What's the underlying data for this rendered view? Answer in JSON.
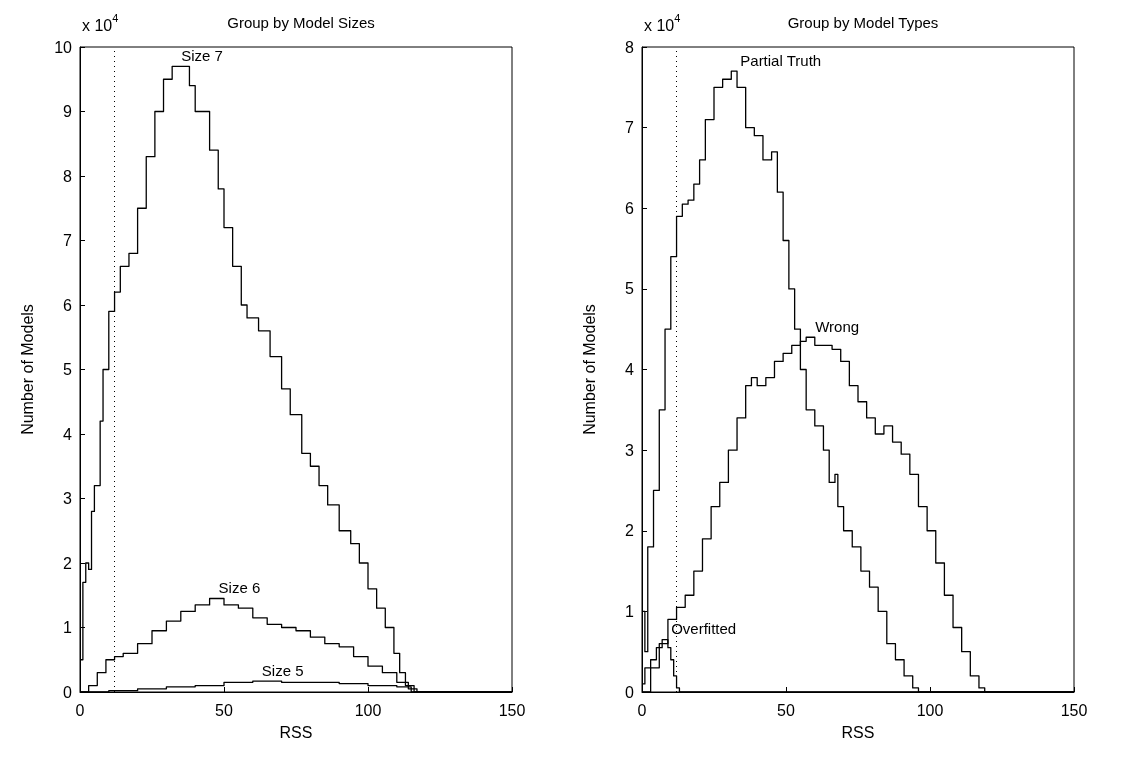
{
  "chart_data": [
    {
      "type": "step",
      "title": "Group by Model Sizes",
      "xlabel": "RSS",
      "ylabel": "Number of Models",
      "annotations": [
        "x 10$^{4}$"
      ],
      "xlim": [
        0,
        150
      ],
      "xticks": [
        0,
        50,
        100,
        150
      ],
      "ylim": [
        0,
        10
      ],
      "yticks": [
        0,
        1,
        2,
        3,
        4,
        5,
        6,
        7,
        8,
        9,
        10
      ],
      "grid": false,
      "legend": false,
      "marker": "none",
      "line_style": "solid",
      "ref_lines": [
        {
          "axis": "x",
          "value": 12,
          "line_style": "dotted",
          "color": "#000000"
        }
      ],
      "series": [
        {
          "name": "Size 7",
          "color": "#000000",
          "x": [
            0,
            1,
            2,
            3,
            4,
            5,
            7,
            8,
            10,
            12,
            14,
            17,
            20,
            23,
            26,
            29,
            32,
            35,
            38,
            40,
            42,
            45,
            48,
            50,
            53,
            56,
            58,
            62,
            66,
            70,
            73,
            77,
            80,
            83,
            86,
            90,
            94,
            97,
            100,
            103,
            106,
            109,
            111,
            113,
            116,
            150
          ],
          "values": [
            0.5,
            1.7,
            2.0,
            1.9,
            2.8,
            3.2,
            4.2,
            5.0,
            5.9,
            6.2,
            6.6,
            6.8,
            7.5,
            8.3,
            9.0,
            9.5,
            9.7,
            9.7,
            9.4,
            9.0,
            9.0,
            8.4,
            7.8,
            7.2,
            6.6,
            6.0,
            5.8,
            5.6,
            5.2,
            4.7,
            4.3,
            3.7,
            3.5,
            3.2,
            2.9,
            2.5,
            2.3,
            2.0,
            1.6,
            1.3,
            1.0,
            0.6,
            0.3,
            0.1,
            0,
            0
          ]
        },
        {
          "name": "Size 6",
          "color": "#000000",
          "x": [
            0,
            3,
            6,
            9,
            12,
            15,
            20,
            25,
            30,
            35,
            40,
            45,
            50,
            55,
            60,
            65,
            70,
            75,
            80,
            85,
            90,
            95,
            100,
            105,
            110,
            114,
            117,
            150
          ],
          "values": [
            0,
            0.1,
            0.3,
            0.5,
            0.55,
            0.6,
            0.75,
            0.95,
            1.1,
            1.25,
            1.35,
            1.45,
            1.35,
            1.3,
            1.15,
            1.05,
            1.0,
            0.95,
            0.85,
            0.75,
            0.7,
            0.55,
            0.4,
            0.3,
            0.15,
            0.05,
            0,
            0
          ]
        },
        {
          "name": "Size 5",
          "color": "#000000",
          "x": [
            0,
            10,
            20,
            30,
            40,
            50,
            60,
            70,
            80,
            90,
            100,
            110,
            115,
            150
          ],
          "values": [
            0,
            0.02,
            0.05,
            0.08,
            0.1,
            0.15,
            0.17,
            0.15,
            0.15,
            0.13,
            0.1,
            0.08,
            0,
            0
          ]
        }
      ]
    },
    {
      "type": "step",
      "title": "Group by Model Types",
      "xlabel": "RSS",
      "ylabel": "Number of Models",
      "annotations": [
        "x 10$^{4}$"
      ],
      "xlim": [
        0,
        150
      ],
      "xticks": [
        0,
        50,
        100,
        150
      ],
      "ylim": [
        0,
        8
      ],
      "yticks": [
        0,
        1,
        2,
        3,
        4,
        5,
        6,
        7,
        8
      ],
      "grid": false,
      "legend": false,
      "marker": "none",
      "line_style": "solid",
      "ref_lines": [
        {
          "axis": "x",
          "value": 12,
          "line_style": "dotted",
          "color": "#000000"
        }
      ],
      "series": [
        {
          "name": "Partial Truth",
          "color": "#000000",
          "x": [
            0,
            1,
            2,
            4,
            6,
            8,
            10,
            12,
            14,
            16,
            18,
            20,
            22,
            25,
            28,
            31,
            33,
            36,
            39,
            42,
            45,
            47,
            49,
            51,
            53,
            55,
            57,
            60,
            63,
            65,
            67,
            68,
            70,
            73,
            76,
            79,
            82,
            85,
            88,
            91,
            94,
            96,
            150
          ],
          "values": [
            1.0,
            0.5,
            1.8,
            2.5,
            3.5,
            4.5,
            5.4,
            5.9,
            6.05,
            6.1,
            6.3,
            6.6,
            7.1,
            7.5,
            7.6,
            7.7,
            7.5,
            7.0,
            6.9,
            6.6,
            6.7,
            6.2,
            5.6,
            5.0,
            4.5,
            4.0,
            3.5,
            3.3,
            3.0,
            2.6,
            2.7,
            2.3,
            2.0,
            1.8,
            1.5,
            1.3,
            1.0,
            0.6,
            0.4,
            0.2,
            0.05,
            0,
            0
          ]
        },
        {
          "name": "Wrong",
          "color": "#000000",
          "x": [
            0,
            3,
            6,
            9,
            12,
            15,
            18,
            21,
            24,
            27,
            30,
            33,
            36,
            38,
            40,
            43,
            46,
            49,
            52,
            55,
            57,
            60,
            63,
            66,
            69,
            72,
            75,
            78,
            81,
            84,
            87,
            90,
            93,
            96,
            99,
            102,
            105,
            108,
            111,
            114,
            117,
            119,
            150
          ],
          "values": [
            0,
            0.3,
            0.6,
            0.9,
            1.05,
            1.2,
            1.5,
            1.9,
            2.3,
            2.6,
            3.0,
            3.4,
            3.8,
            3.9,
            3.8,
            3.9,
            4.1,
            4.2,
            4.3,
            4.35,
            4.4,
            4.3,
            4.3,
            4.25,
            4.1,
            3.8,
            3.6,
            3.4,
            3.2,
            3.3,
            3.1,
            2.95,
            2.7,
            2.3,
            2.0,
            1.6,
            1.2,
            0.8,
            0.5,
            0.2,
            0.05,
            0,
            0
          ]
        },
        {
          "name": "Overfitted",
          "color": "#000000",
          "x": [
            0,
            1,
            3,
            5,
            7,
            9,
            10,
            11,
            12,
            13,
            150
          ],
          "values": [
            0.1,
            0.3,
            0.4,
            0.55,
            0.65,
            0.55,
            0.4,
            0.2,
            0.05,
            0,
            0
          ]
        }
      ]
    }
  ]
}
